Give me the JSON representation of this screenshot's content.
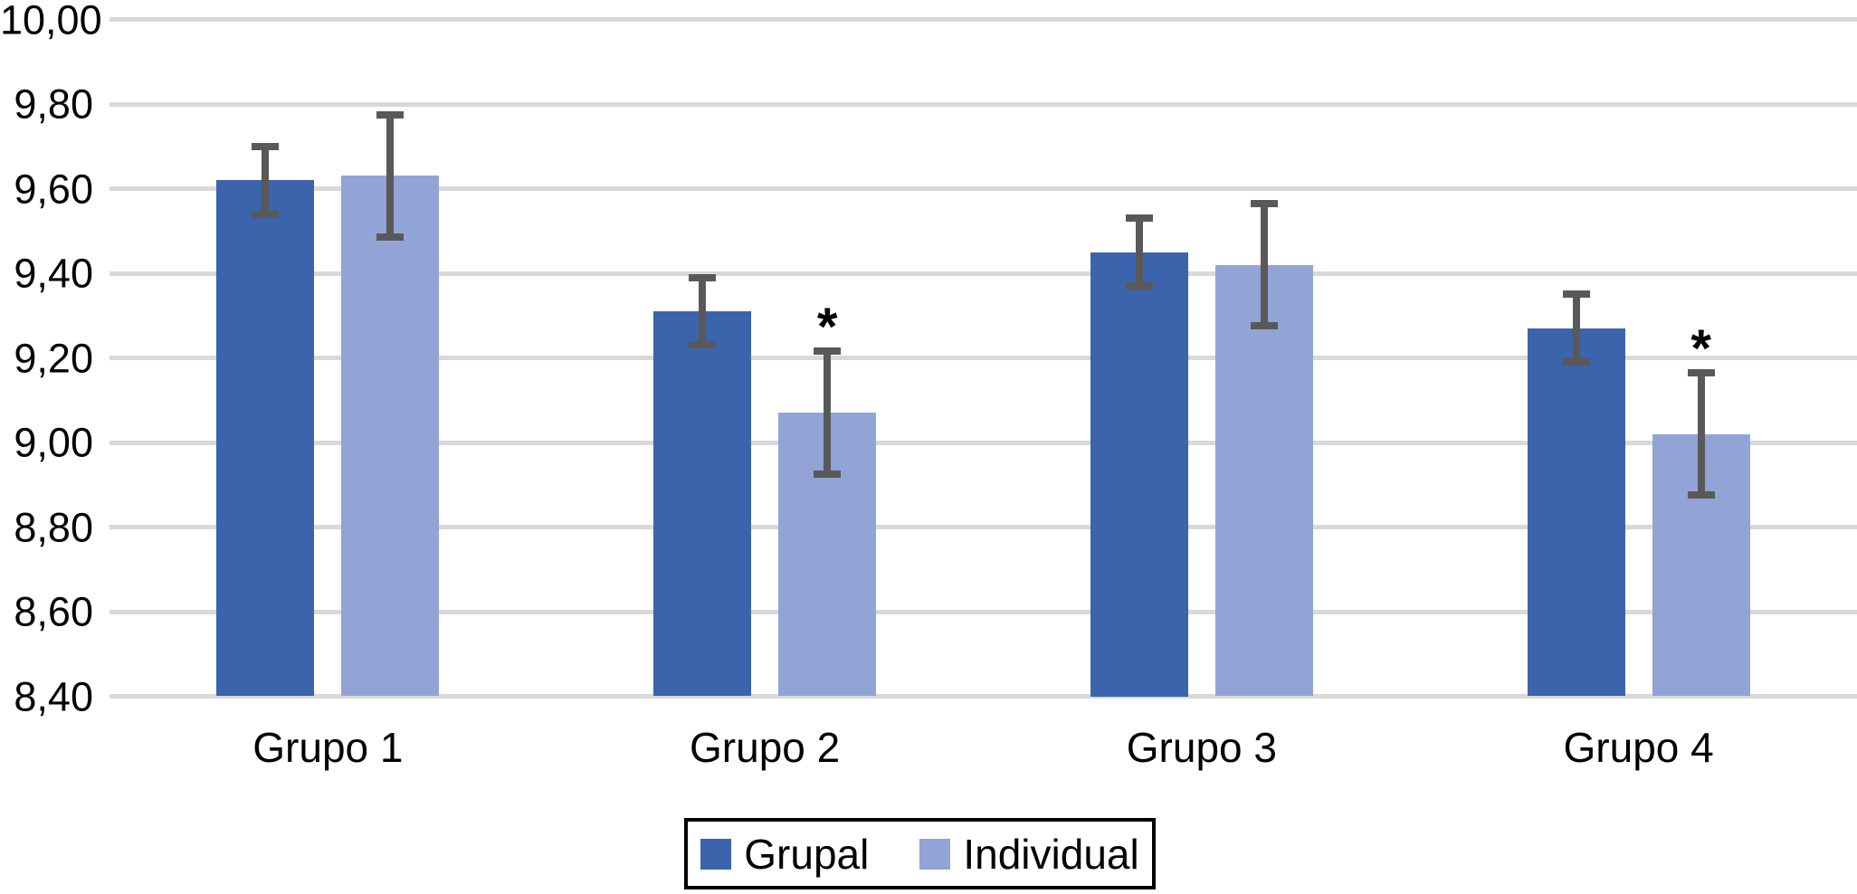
{
  "chart_data": {
    "type": "bar",
    "title": "",
    "xlabel": "",
    "ylabel": "",
    "categories": [
      "Grupo 1",
      "Grupo 2",
      "Grupo 3",
      "Grupo 4"
    ],
    "series": [
      {
        "name": "Grupal",
        "color": "#3B64AC",
        "values": [
          9.62,
          9.31,
          9.45,
          9.27
        ],
        "error_plus": [
          0.08,
          0.08,
          0.08,
          0.08
        ],
        "error_minus": [
          0.08,
          0.08,
          0.08,
          0.08
        ]
      },
      {
        "name": "Individual",
        "color": "#92A3D6",
        "values": [
          9.63,
          9.07,
          9.42,
          9.02
        ],
        "error_plus": [
          0.145,
          0.145,
          0.145,
          0.145
        ],
        "error_minus": [
          0.145,
          0.145,
          0.145,
          0.145
        ]
      }
    ],
    "annotations": [
      {
        "text": "*",
        "series": "Individual",
        "category_index": 1
      },
      {
        "text": "*",
        "series": "Individual",
        "category_index": 3
      }
    ],
    "y_axis": {
      "min": 8.4,
      "max": 10.0,
      "step": 0.2,
      "decimal_separator": ",",
      "tick_labels": [
        "10,00",
        "9,80",
        "9,60",
        "9,40",
        "9,20",
        "9,00",
        "8,80",
        "8,60",
        "8,40"
      ]
    },
    "grid": true,
    "legend": {
      "position": "bottom-center",
      "border": true,
      "entries": [
        "Grupal",
        "Individual"
      ]
    },
    "colors": {
      "background": "#FFFFFF",
      "gridline": "#D9D9D9",
      "error_bar": "#595959",
      "text": "#000000"
    }
  }
}
